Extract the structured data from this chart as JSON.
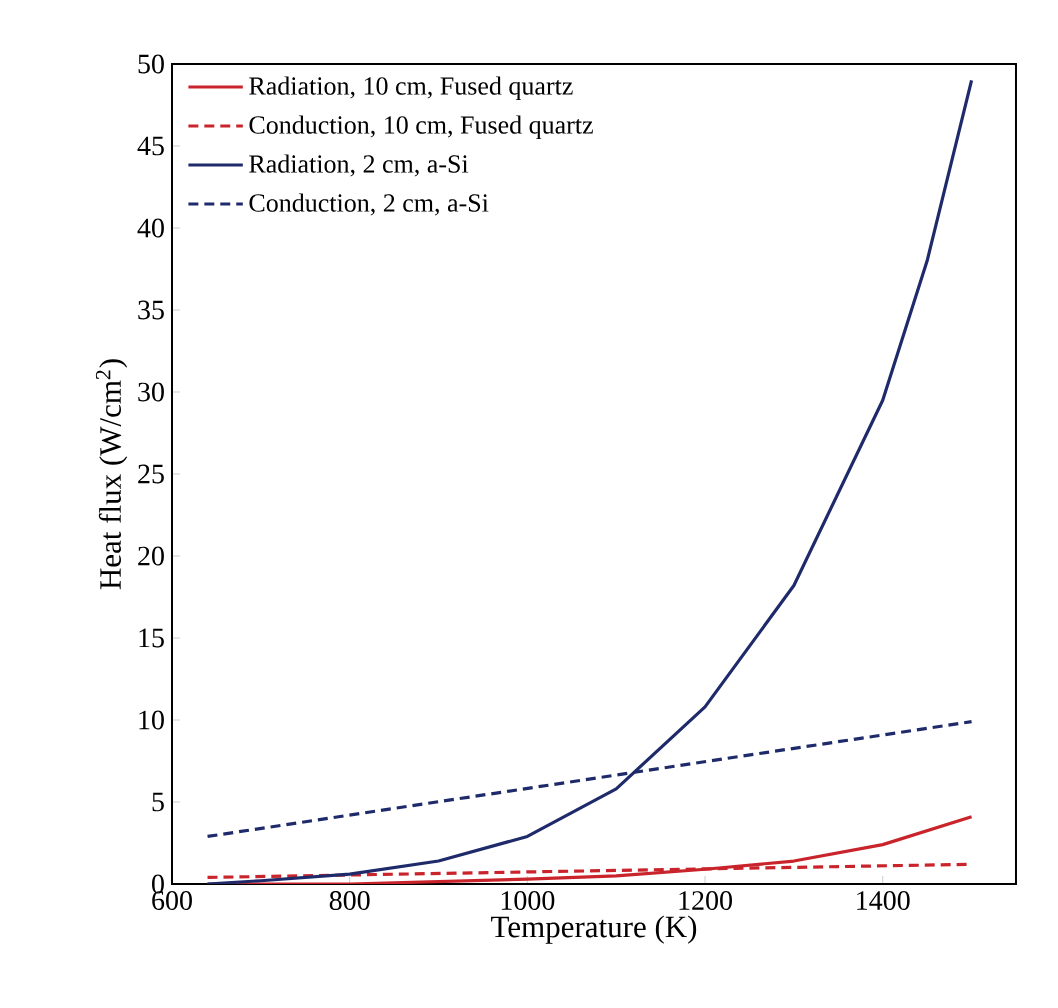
{
  "chart_data": {
    "type": "line",
    "xlabel": "Temperature (K)",
    "ylabel": "Heat flux (W/cm$^{2}$)",
    "xlim": [
      600,
      1550
    ],
    "xticks": [
      600,
      800,
      1000,
      1200,
      1400
    ],
    "ylim": [
      0,
      50
    ],
    "yticks": [
      0,
      5,
      10,
      15,
      20,
      25,
      30,
      35,
      40,
      45,
      50
    ],
    "grid": false,
    "legend": "top left",
    "marker": "none",
    "series": [
      {
        "name": "Radiation, 10 cm, Fused quartz",
        "color": "#c9242b",
        "line_style": "solid",
        "x": [
          640,
          800,
          1000,
          1100,
          1200,
          1300,
          1400,
          1500
        ],
        "values": [
          0,
          0,
          0.3,
          0.5,
          0.9,
          1.4,
          2.4,
          4.1
        ]
      },
      {
        "name": "Conduction, 10 cm, Fused quartz",
        "color": "#c9242b",
        "line_style": "dashed",
        "x": [
          640,
          1500
        ],
        "values": [
          0.4,
          1.2
        ]
      },
      {
        "name": "Radiation, 2 cm, a-Si",
        "color": "#1f2a6b",
        "line_style": "solid",
        "x": [
          640,
          700,
          800,
          900,
          1000,
          1100,
          1200,
          1300,
          1400,
          1450,
          1500
        ],
        "values": [
          0,
          0.2,
          0.6,
          1.4,
          2.9,
          5.8,
          10.8,
          18.2,
          29.5,
          38,
          49
        ]
      },
      {
        "name": "Conduction, 2 cm, a-Si",
        "color": "#1f2a6b",
        "line_style": "dashed",
        "x": [
          640,
          1500
        ],
        "values": [
          2.9,
          9.9
        ]
      }
    ]
  }
}
